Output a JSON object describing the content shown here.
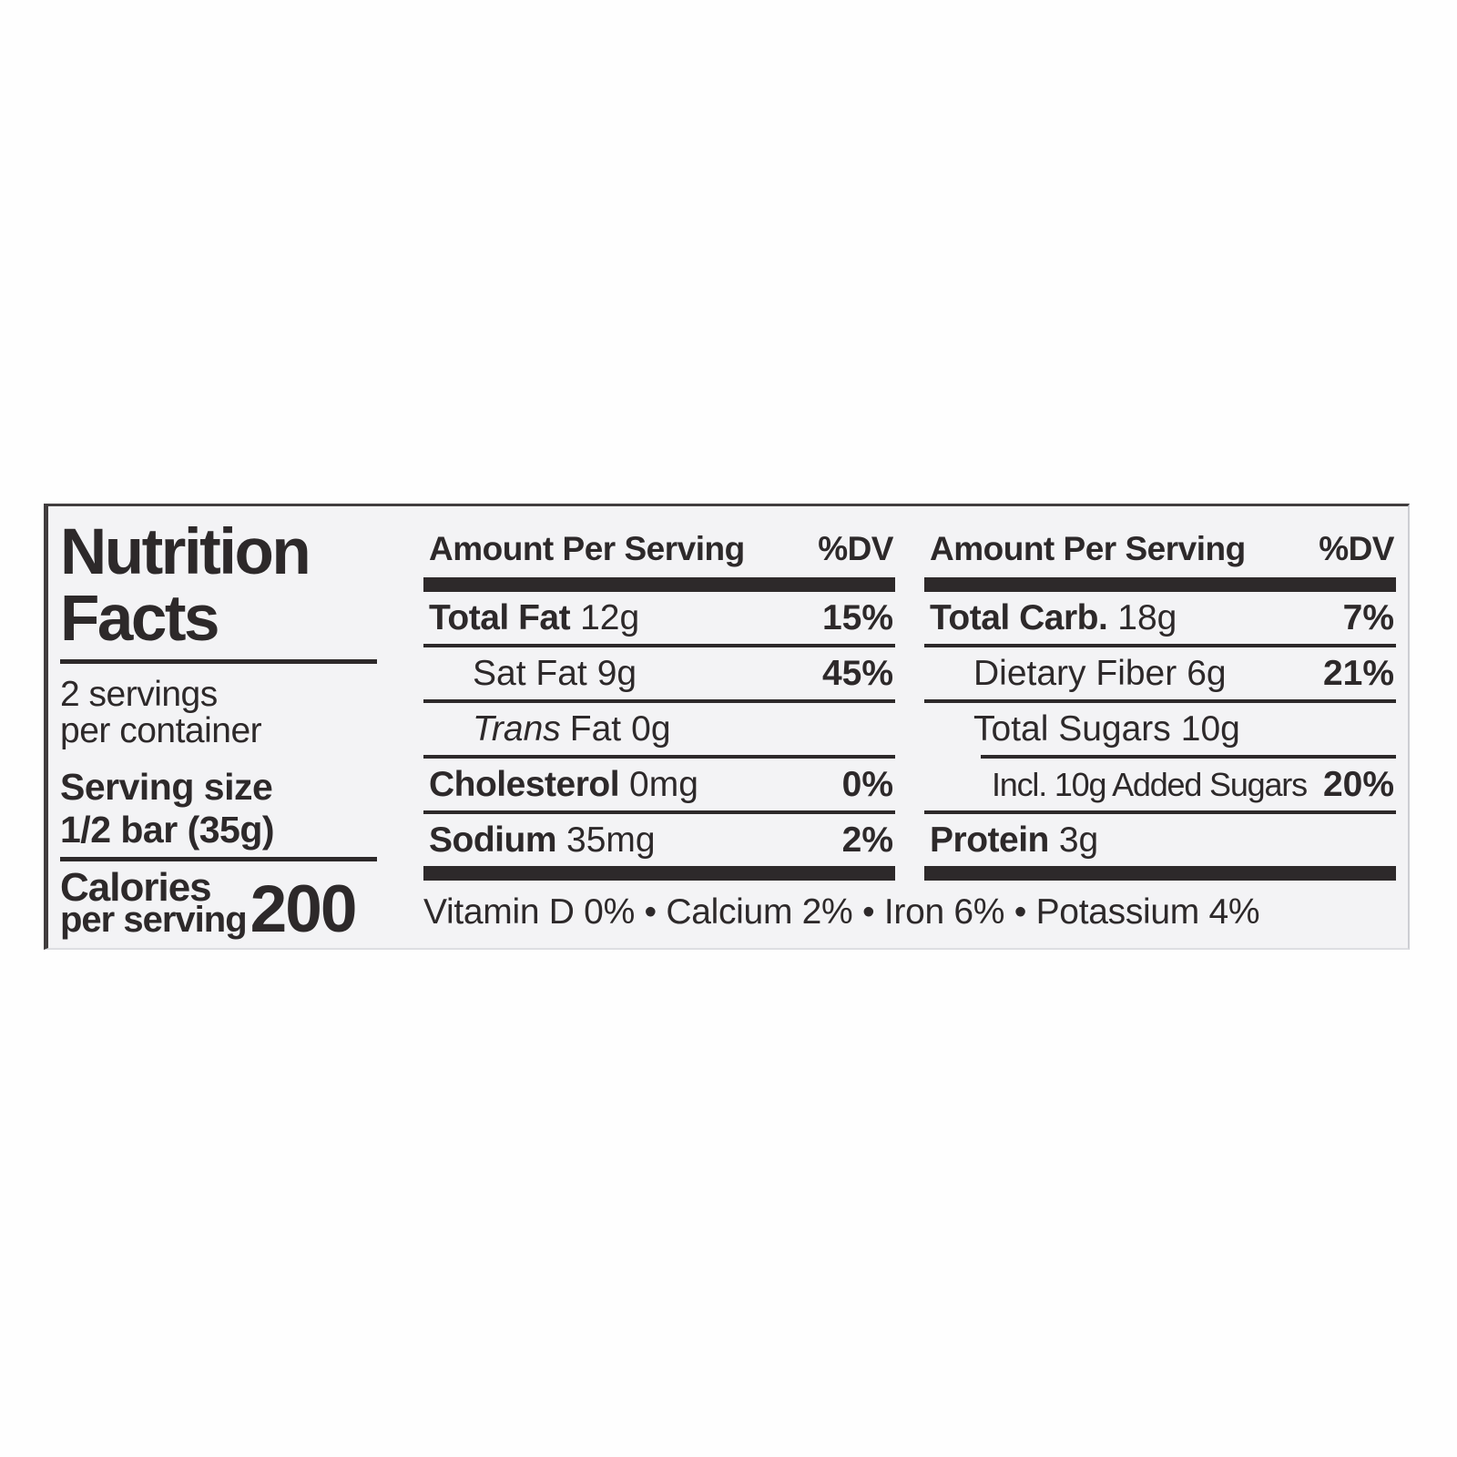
{
  "colors": {
    "text": "#2d292a",
    "label_bg": "#f3f3f5",
    "rule": "#2d292a"
  },
  "label": {
    "title_line1": "Nutrition",
    "title_line2": "Facts",
    "servings_line1": "2 servings",
    "servings_line2": "per container",
    "serving_size_label": "Serving size",
    "serving_size_value": "1/2 bar (35g)",
    "calories_label_line1": "Calories",
    "calories_label_line2": "per serving",
    "calories_value": "200",
    "columns": [
      {
        "header_left": "Amount Per Serving",
        "header_right": "%DV",
        "rows": [
          {
            "name": "Total Fat",
            "amount": "12g",
            "dv": "15%"
          },
          {
            "name": "Sat Fat",
            "amount": "9g",
            "dv": "45%"
          },
          {
            "name_italic": "Trans",
            "name": "Fat",
            "amount": "0g",
            "dv": ""
          },
          {
            "name": "Cholesterol",
            "amount": "0mg",
            "dv": "0%"
          },
          {
            "name": "Sodium",
            "amount": "35mg",
            "dv": "2%"
          }
        ]
      },
      {
        "header_left": "Amount Per Serving",
        "header_right": "%DV",
        "rows": [
          {
            "name": "Total Carb.",
            "amount": "18g",
            "dv": "7%"
          },
          {
            "name": "Dietary Fiber",
            "amount": "6g",
            "dv": "21%"
          },
          {
            "name": "Total Sugars",
            "amount": "10g",
            "dv": ""
          },
          {
            "name": "Incl. 10g Added Sugars",
            "amount": "",
            "dv": "20%"
          },
          {
            "name": "Protein",
            "amount": "3g",
            "dv": ""
          }
        ]
      }
    ],
    "footnote": "Vitamin D 0% • Calcium 2% • Iron 6% • Potassium 4%"
  }
}
